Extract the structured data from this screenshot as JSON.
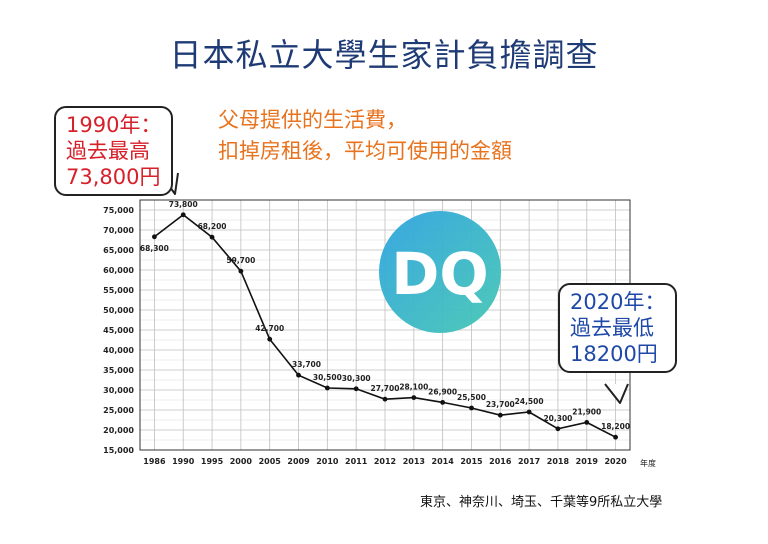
{
  "title": "日本私立大學生家計負擔調查",
  "subtitle_line1": "父母提供的生活費，",
  "subtitle_line2": "扣掉房租後，平均可使用的金額",
  "callout_high": {
    "line1": "1990年：",
    "line2": "過去最高",
    "line3": "73,800円"
  },
  "callout_low": {
    "line1": "2020年：",
    "line2": "過去最低",
    "line3": "18200円"
  },
  "watermark": "DQ",
  "source": "東京、神奈川、埼玉、千葉等9所私立大學",
  "colors": {
    "title": "#1f3b75",
    "subtitle": "#e8731f",
    "high": "#d6202a",
    "low": "#1f49a8",
    "watermark_a": "#2fa3e0",
    "watermark_b": "#46c7b3"
  },
  "chart_data": {
    "type": "line",
    "x": [
      "1986",
      "1990",
      "1995",
      "2000",
      "2005",
      "2009",
      "2010",
      "2011",
      "2012",
      "2013",
      "2014",
      "2015",
      "2016",
      "2017",
      "2018",
      "2019",
      "2020"
    ],
    "values": [
      68300,
      73800,
      68200,
      59700,
      42700,
      33700,
      30500,
      30300,
      27700,
      28100,
      26900,
      25500,
      23700,
      24500,
      20300,
      21900,
      18200
    ],
    "data_labels": [
      "68,300",
      "73,800",
      "68,200",
      "59,700",
      "42,700",
      "33,700",
      "30,500",
      "30,300",
      "27,700",
      "28,100",
      "26,900",
      "25,500",
      "23,700",
      "24,500",
      "20,300",
      "21,900",
      "18,200"
    ],
    "y_ticks": [
      "15,000",
      "20,000",
      "25,000",
      "30,000",
      "35,000",
      "40,000",
      "45,000",
      "50,000",
      "55,000",
      "60,000",
      "65,000",
      "70,000",
      "75,000"
    ],
    "ylim": [
      15000,
      77500
    ],
    "xlabel": "年度",
    "grid": true
  }
}
